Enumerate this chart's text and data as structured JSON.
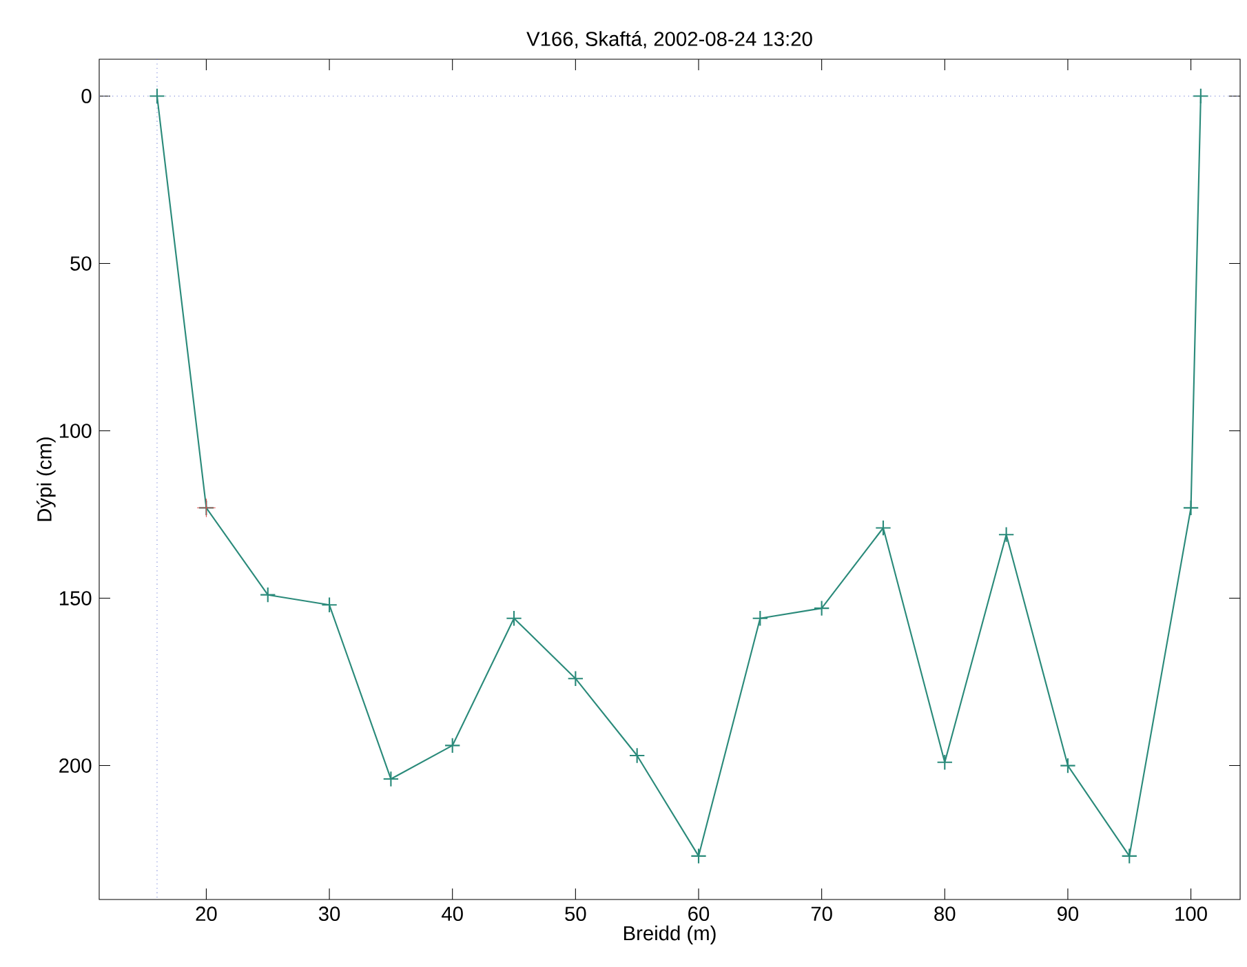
{
  "chart_data": {
    "type": "line",
    "title": "V166, Skaftá, 2002-08-24 13:20",
    "xlabel": "Breidd (m)",
    "ylabel": "Dýpi (cm)",
    "xlim": [
      11.3,
      104
    ],
    "ylim": [
      240,
      -11
    ],
    "xticks": [
      20,
      30,
      40,
      50,
      60,
      70,
      80,
      90,
      100
    ],
    "yticks": [
      0,
      50,
      100,
      150,
      200
    ],
    "marker": "cross",
    "line_style": "solid",
    "series": [
      {
        "color": "#2a8a7a",
        "x": [
          16,
          20,
          25,
          30,
          35,
          40,
          45,
          50,
          55,
          60,
          65,
          70,
          75,
          80,
          85,
          90,
          95,
          100,
          100.8
        ],
        "values": [
          0,
          123,
          149,
          152,
          204,
          194,
          156,
          174,
          197,
          227,
          156,
          153,
          129,
          199,
          131,
          200,
          227,
          123,
          0
        ]
      },
      {
        "type": "scatter",
        "color": "#e04848",
        "x": [
          20
        ],
        "values": [
          123
        ]
      }
    ],
    "ref_lines": [
      {
        "axis": "x",
        "value": 16,
        "color": "#5a6ad0",
        "line_style": "dotted"
      },
      {
        "axis": "y",
        "value": 0,
        "color": "#5a6ad0",
        "line_style": "dotted"
      }
    ]
  }
}
